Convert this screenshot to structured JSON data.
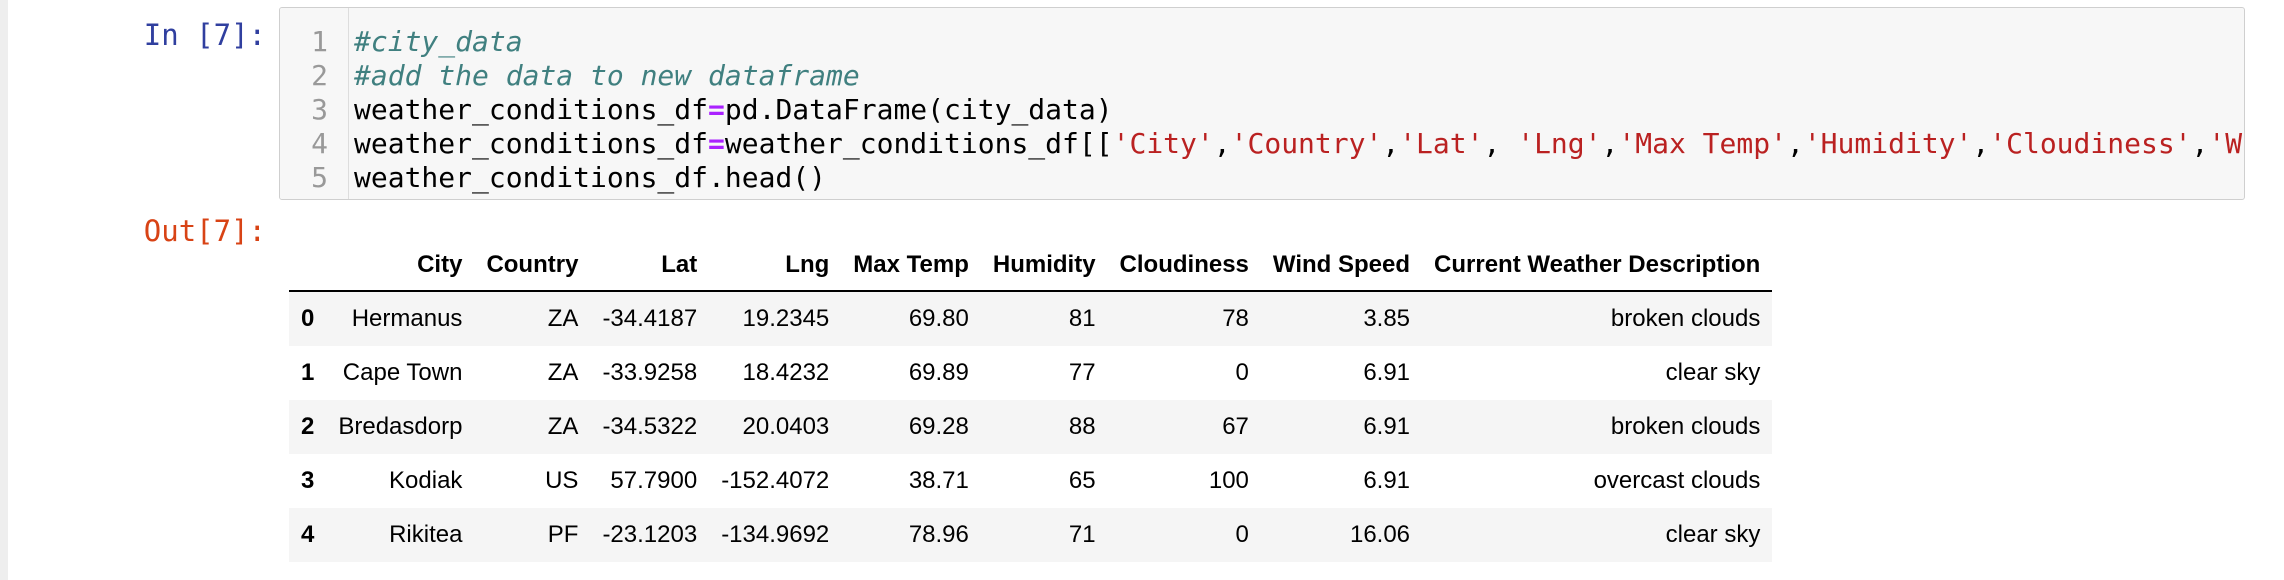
{
  "input_prompt": "In [7]:",
  "output_prompt": "Out[7]:",
  "code": {
    "line_numbers": [
      "1",
      "2",
      "3",
      "4",
      "5"
    ],
    "lines": {
      "l1_comment": "#city_data",
      "l2_comment": "#add the data to new dataframe",
      "l3_a": "weather_conditions_df",
      "l3_op": "=",
      "l3_b": "pd.DataFrame(city_data)",
      "l4_a": "weather_conditions_df",
      "l4_op": "=",
      "l4_b": "weather_conditions_df[[",
      "l4_s1": "'City'",
      "l4_s2": "'Country'",
      "l4_s3": "'Lat'",
      "l4_s4": "'Lng'",
      "l4_s5": "'Max Temp'",
      "l4_s6": "'Humidity'",
      "l4_s7": "'Cloudiness'",
      "l4_s8": "'W",
      "comma": ",",
      "comma_space": ", ",
      "l5": "weather_conditions_df.head()"
    }
  },
  "dataframe": {
    "columns": [
      "",
      "City",
      "Country",
      "Lat",
      "Lng",
      "Max Temp",
      "Humidity",
      "Cloudiness",
      "Wind Speed",
      "Current Weather Description"
    ],
    "rows": [
      {
        "index": "0",
        "city": "Hermanus",
        "country": "ZA",
        "lat": "-34.4187",
        "lng": "19.2345",
        "max_temp": "69.80",
        "humidity": "81",
        "cloudiness": "78",
        "wind_speed": "3.85",
        "description": "broken clouds"
      },
      {
        "index": "1",
        "city": "Cape Town",
        "country": "ZA",
        "lat": "-33.9258",
        "lng": "18.4232",
        "max_temp": "69.89",
        "humidity": "77",
        "cloudiness": "0",
        "wind_speed": "6.91",
        "description": "clear sky"
      },
      {
        "index": "2",
        "city": "Bredasdorp",
        "country": "ZA",
        "lat": "-34.5322",
        "lng": "20.0403",
        "max_temp": "69.28",
        "humidity": "88",
        "cloudiness": "67",
        "wind_speed": "6.91",
        "description": "broken clouds"
      },
      {
        "index": "3",
        "city": "Kodiak",
        "country": "US",
        "lat": "57.7900",
        "lng": "-152.4072",
        "max_temp": "38.71",
        "humidity": "65",
        "cloudiness": "100",
        "wind_speed": "6.91",
        "description": "overcast clouds"
      },
      {
        "index": "4",
        "city": "Rikitea",
        "country": "PF",
        "lat": "-23.1203",
        "lng": "-134.9692",
        "max_temp": "78.96",
        "humidity": "71",
        "cloudiness": "0",
        "wind_speed": "16.06",
        "description": "clear sky"
      }
    ]
  }
}
